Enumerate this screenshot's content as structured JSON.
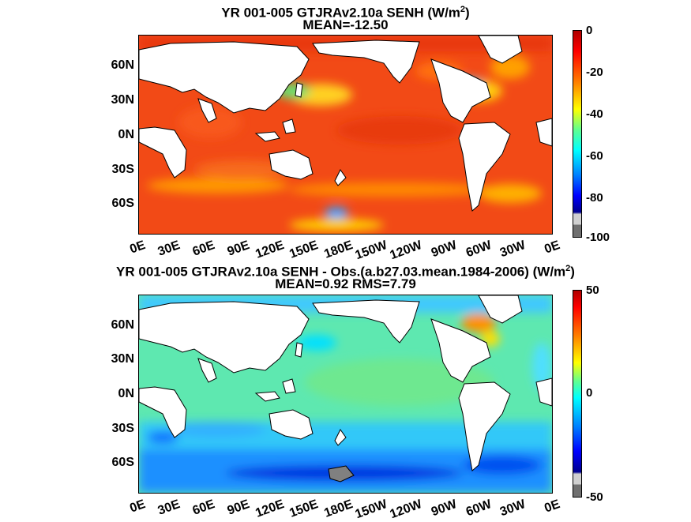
{
  "chart_data": [
    {
      "type": "heatmap",
      "title": "YR 001-005 GTJRAv2.10a  SENH (W/m",
      "title_unit_sup": "2",
      "title_unit_close": ")",
      "subtitle": "MEAN=-12.50",
      "mean": -12.5,
      "x_ticks": [
        "0E",
        "30E",
        "60E",
        "90E",
        "120E",
        "150E",
        "180E",
        "150W",
        "120W",
        "90W",
        "60W",
        "30W",
        "0E"
      ],
      "y_ticks": [
        "60N",
        "30N",
        "0N",
        "30S",
        "60S"
      ],
      "colorbar": {
        "ticks": [
          "0",
          "-20",
          "-40",
          "-60",
          "-80",
          "-100"
        ],
        "range": [
          -100,
          0
        ]
      },
      "colormap": "jet"
    },
    {
      "type": "heatmap",
      "title": "YR 001-005 GTJRAv2.10a SENH - Obs.(a.b27.03.mean.1984-2006) (W/m",
      "title_unit_sup": "2",
      "title_unit_close": ")",
      "subtitle": "MEAN=0.92 RMS=7.79",
      "mean": 0.92,
      "rms": 7.79,
      "x_ticks": [
        "0E",
        "30E",
        "60E",
        "90E",
        "120E",
        "150E",
        "180E",
        "150W",
        "120W",
        "90W",
        "60W",
        "30W",
        "0E"
      ],
      "y_ticks": [
        "60N",
        "30N",
        "0N",
        "30S",
        "60S"
      ],
      "colorbar": {
        "ticks": [
          "50",
          "0",
          "-50"
        ],
        "range": [
          -50,
          50
        ]
      },
      "colormap": "jet"
    }
  ]
}
